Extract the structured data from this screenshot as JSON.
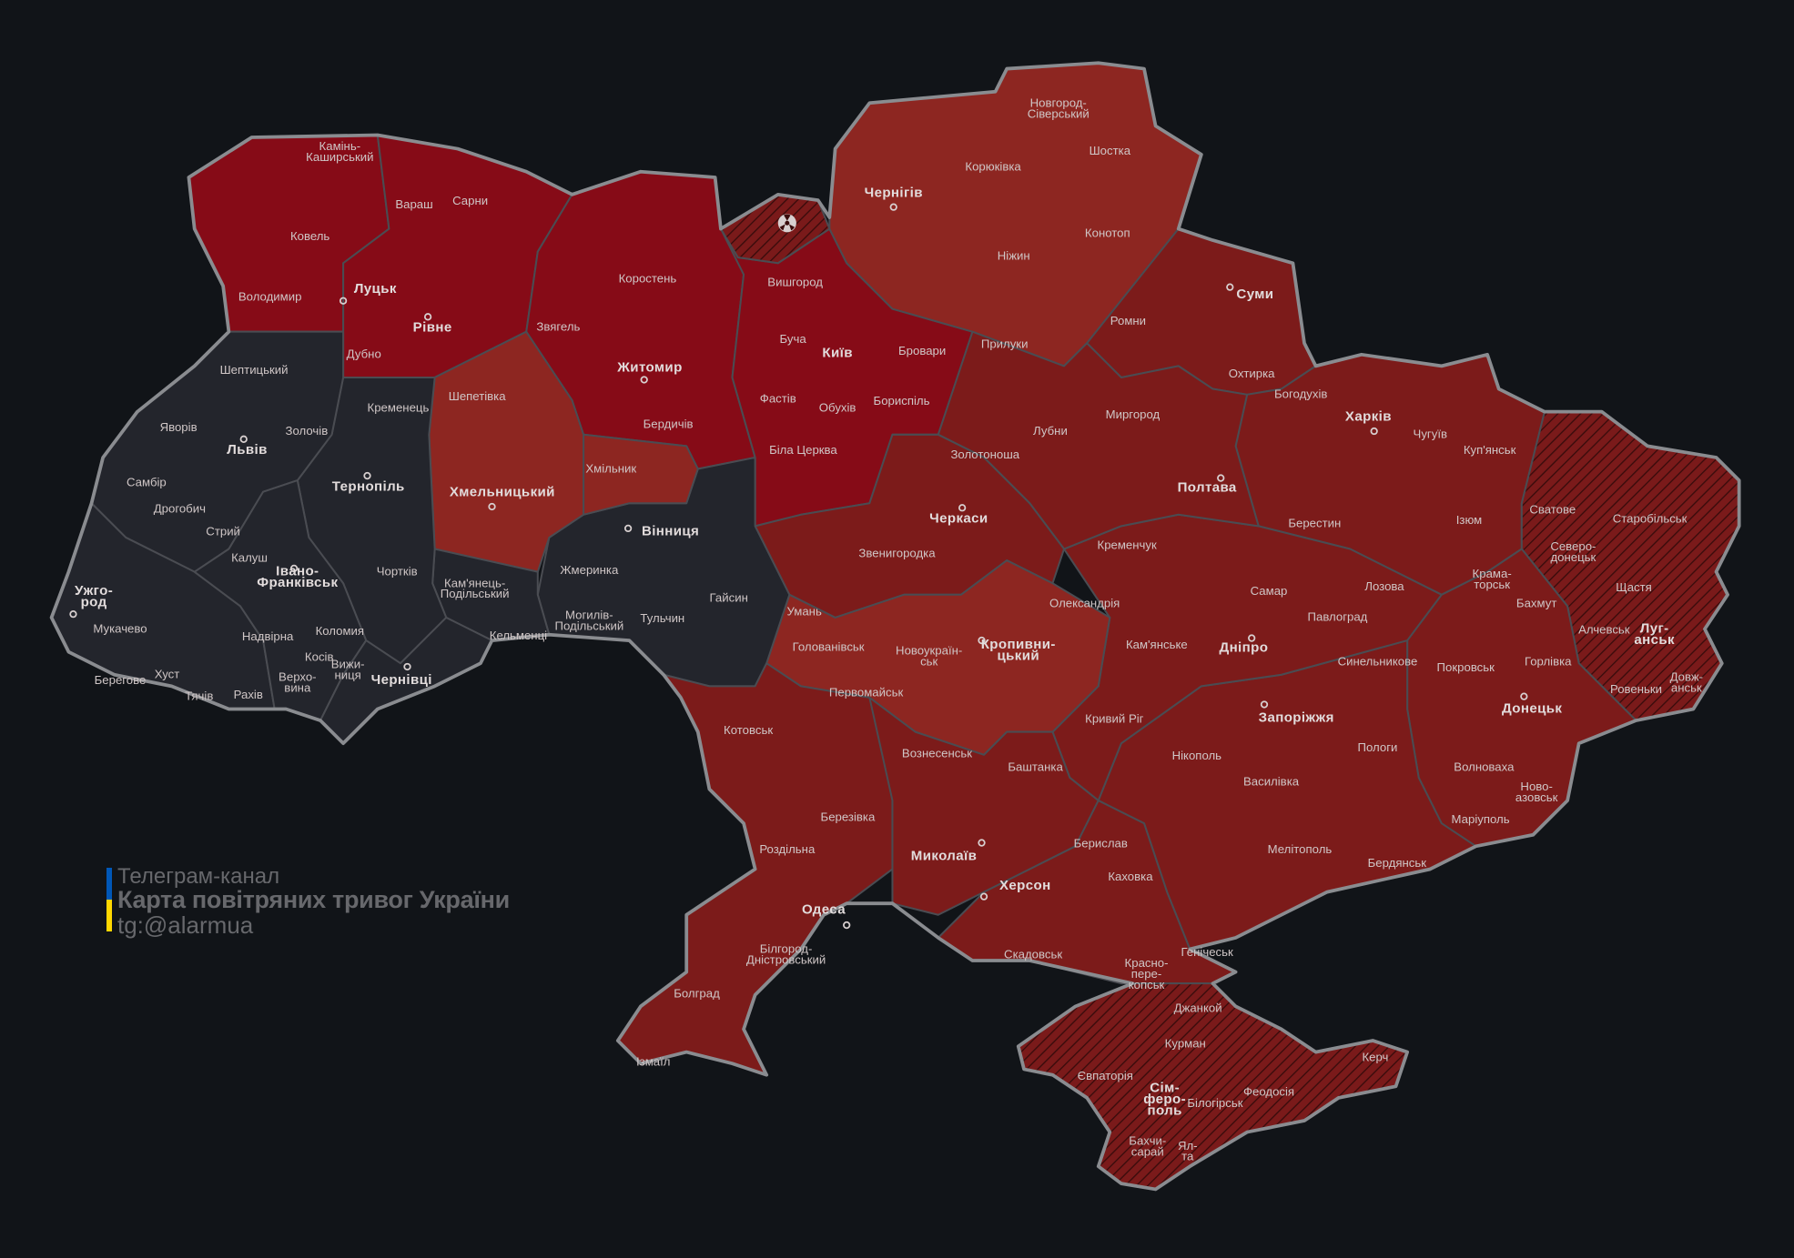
{
  "legend": {
    "line1": "Телеграм-канал",
    "line2": "Карта повітряних тривог України",
    "line3": "tg:@alarmua",
    "flag_colors": [
      "#0057b7",
      "#ffd700"
    ]
  },
  "colors": {
    "background": "#111418",
    "alert": "#7c1b1a",
    "alert_bright": "#860b17",
    "alert_light": "#8d2621",
    "no_alert": "#23252c",
    "occupied_hatch": "#3a0c0c"
  },
  "regions": {
    "volyn": "alert_bright",
    "rivne": "alert_bright",
    "zhytomyr": "alert_bright",
    "kyiv": "alert_bright",
    "chornobyl_zone": "occupied",
    "chernihiv": "alert_light",
    "sumy": "alert",
    "kharkiv": "alert",
    "luhansk": "occupied",
    "donetsk": "alert",
    "zaporizhzhia": "alert",
    "dnipro": "alert",
    "poltava": "alert",
    "cherkasy": "alert",
    "kirovohrad": "alert_light",
    "vinnytsia": "no_alert",
    "khmilnyk": "alert_light",
    "khmelnytskyi": "alert_light",
    "kamianets": "no_alert",
    "ternopil": "no_alert",
    "lviv": "no_alert",
    "zakarpattia": "no_alert",
    "ivano_frankivsk": "no_alert",
    "chernivtsi": "no_alert",
    "odesa": "alert",
    "mykolaiv": "alert",
    "kherson": "alert",
    "crimea": "occupied"
  },
  "icons": {
    "chornobyl": "radiation-icon"
  },
  "cities": [
    {
      "name": "Камінь-\nКаширський"
    },
    {
      "name": "Вараш"
    },
    {
      "name": "Сарни"
    },
    {
      "name": "Ковель"
    },
    {
      "name": "Луцьк",
      "capital": true
    },
    {
      "name": "Володимир"
    },
    {
      "name": "Рівне",
      "capital": true
    },
    {
      "name": "Дубно"
    },
    {
      "name": "Коростень"
    },
    {
      "name": "Звягель"
    },
    {
      "name": "Житомир",
      "capital": true
    },
    {
      "name": "Бердичів"
    },
    {
      "name": "Шепетівка"
    },
    {
      "name": "Хмільник"
    },
    {
      "name": "Хмельницький",
      "capital": true
    },
    {
      "name": "Вишгород"
    },
    {
      "name": "Буча"
    },
    {
      "name": "Київ",
      "capital": true
    },
    {
      "name": "Бровари"
    },
    {
      "name": "Фастів"
    },
    {
      "name": "Обухів"
    },
    {
      "name": "Бориспіль"
    },
    {
      "name": "Біла Церква"
    },
    {
      "name": "Новгород-\nСіверський"
    },
    {
      "name": "Корюківка"
    },
    {
      "name": "Шостка"
    },
    {
      "name": "Чернігів",
      "capital": true
    },
    {
      "name": "Конотоп"
    },
    {
      "name": "Ніжин"
    },
    {
      "name": "Прилуки"
    },
    {
      "name": "Ромни"
    },
    {
      "name": "Суми",
      "capital": true
    },
    {
      "name": "Охтирка"
    },
    {
      "name": "Богодухів"
    },
    {
      "name": "Харків",
      "capital": true
    },
    {
      "name": "Чугуїв"
    },
    {
      "name": "Куп'янськ"
    },
    {
      "name": "Ізюм"
    },
    {
      "name": "Лубни"
    },
    {
      "name": "Миргород"
    },
    {
      "name": "Золотоноша"
    },
    {
      "name": "Полтава",
      "capital": true
    },
    {
      "name": "Черкаси",
      "capital": true
    },
    {
      "name": "Звенигородка"
    },
    {
      "name": "Кременчук"
    },
    {
      "name": "Умань"
    },
    {
      "name": "Олександрія"
    },
    {
      "name": "Кропивни-\nцький",
      "capital": true
    },
    {
      "name": "Новоукраїн-\nськ"
    },
    {
      "name": "Голованівськ"
    },
    {
      "name": "Первомайськ"
    },
    {
      "name": "Кам'янське"
    },
    {
      "name": "Дніпро",
      "capital": true
    },
    {
      "name": "Самар"
    },
    {
      "name": "Павлоград"
    },
    {
      "name": "Синельникове"
    },
    {
      "name": "Берестин"
    },
    {
      "name": "Лозова"
    },
    {
      "name": "Крама-\nторськ"
    },
    {
      "name": "Бахмут"
    },
    {
      "name": "Покровськ"
    },
    {
      "name": "Горлівка"
    },
    {
      "name": "Донецьк",
      "capital": true
    },
    {
      "name": "Волноваха"
    },
    {
      "name": "Ново-\nазовськ"
    },
    {
      "name": "Маріуполь"
    },
    {
      "name": "Сватове"
    },
    {
      "name": "Старобільськ"
    },
    {
      "name": "Северо-\nдонецьк"
    },
    {
      "name": "Щастя"
    },
    {
      "name": "Алчевськ"
    },
    {
      "name": "Луг-\nанськ",
      "capital": true
    },
    {
      "name": "Ровеньки"
    },
    {
      "name": "Довж-\nанськ"
    },
    {
      "name": "Кривий Ріг"
    },
    {
      "name": "Запоріжжя",
      "capital": true
    },
    {
      "name": "Пологи"
    },
    {
      "name": "Нікополь"
    },
    {
      "name": "Василівка"
    },
    {
      "name": "Мелітополь"
    },
    {
      "name": "Бердянськ"
    },
    {
      "name": "Каховка"
    },
    {
      "name": "Берислав"
    },
    {
      "name": "Херсон",
      "capital": true
    },
    {
      "name": "Скадовськ"
    },
    {
      "name": "Генічеськ"
    },
    {
      "name": "Баштанка"
    },
    {
      "name": "Вознесенськ"
    },
    {
      "name": "Миколаїв",
      "capital": true
    },
    {
      "name": "Березівка"
    },
    {
      "name": "Котовськ"
    },
    {
      "name": "Роздільна"
    },
    {
      "name": "Одеса",
      "capital": true
    },
    {
      "name": "Білгород-\nДністровський"
    },
    {
      "name": "Болград"
    },
    {
      "name": "Ізмаїл"
    },
    {
      "name": "Красно-\nпере-\nкопськ"
    },
    {
      "name": "Джанкой"
    },
    {
      "name": "Курман"
    },
    {
      "name": "Євпаторія"
    },
    {
      "name": "Сім-\nферо-\nполь",
      "capital": true
    },
    {
      "name": "Білогірськ"
    },
    {
      "name": "Феодосія"
    },
    {
      "name": "Керч"
    },
    {
      "name": "Бахчи-\nсарай"
    },
    {
      "name": "Ял-\nта"
    },
    {
      "name": "Шептицький"
    },
    {
      "name": "Кременець"
    },
    {
      "name": "Яворів"
    },
    {
      "name": "Золочів"
    },
    {
      "name": "Львів",
      "capital": true
    },
    {
      "name": "Тернопіль",
      "capital": true
    },
    {
      "name": "Самбір"
    },
    {
      "name": "Дрогобич"
    },
    {
      "name": "Стрий"
    },
    {
      "name": "Калуш"
    },
    {
      "name": "Івано-\nФранківськ",
      "capital": true
    },
    {
      "name": "Чортків"
    },
    {
      "name": "Кам'янець-\nПодільський"
    },
    {
      "name": "Кельменці"
    },
    {
      "name": "Жмеринка"
    },
    {
      "name": "Вінниця",
      "capital": true
    },
    {
      "name": "Гайсин"
    },
    {
      "name": "Тульчин"
    },
    {
      "name": "Могилів-\nПодільський"
    },
    {
      "name": "Ужго-\nрод",
      "capital": true
    },
    {
      "name": "Мукачево"
    },
    {
      "name": "Надвірна"
    },
    {
      "name": "Коломия"
    },
    {
      "name": "Косів"
    },
    {
      "name": "Хуст"
    },
    {
      "name": "Берегове"
    },
    {
      "name": "Тячів"
    },
    {
      "name": "Рахів"
    },
    {
      "name": "Верхо-\nвина"
    },
    {
      "name": "Вижи-\nниця"
    },
    {
      "name": "Чернівці",
      "capital": true
    }
  ]
}
